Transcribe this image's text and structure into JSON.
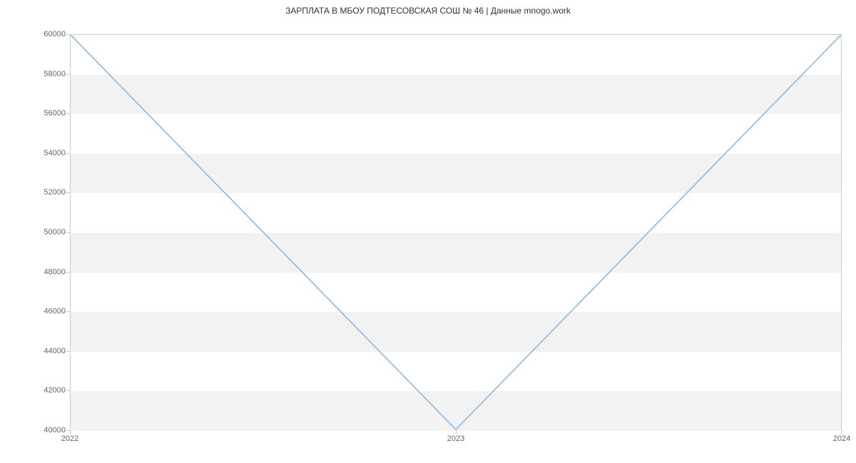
{
  "chart": {
    "type": "line",
    "title": "ЗАРПЛАТА В МБОУ ПОДТЕСОВСКАЯ СОШ № 46 | Данные mnogo.work",
    "title_fontsize": 12,
    "title_color": "#333333",
    "background_color": "#ffffff",
    "plot_border_color": "#cccccc",
    "grid_band_color": "#f2f2f2",
    "axis_label_color": "#666666",
    "axis_label_fontsize": 11,
    "line_color": "#7cb5ec",
    "line_width": 1.5,
    "x_categories": [
      "2022",
      "2023",
      "2024"
    ],
    "y_values": [
      60000,
      40000,
      60000
    ],
    "ylim": [
      40000,
      60000
    ],
    "ytick_step": 2000,
    "y_ticks": [
      40000,
      42000,
      44000,
      46000,
      48000,
      50000,
      52000,
      54000,
      56000,
      58000,
      60000
    ],
    "y_tick_labels": [
      "40000",
      "42000",
      "44000",
      "46000",
      "48000",
      "50000",
      "52000",
      "54000",
      "56000",
      "58000",
      "60000"
    ]
  }
}
